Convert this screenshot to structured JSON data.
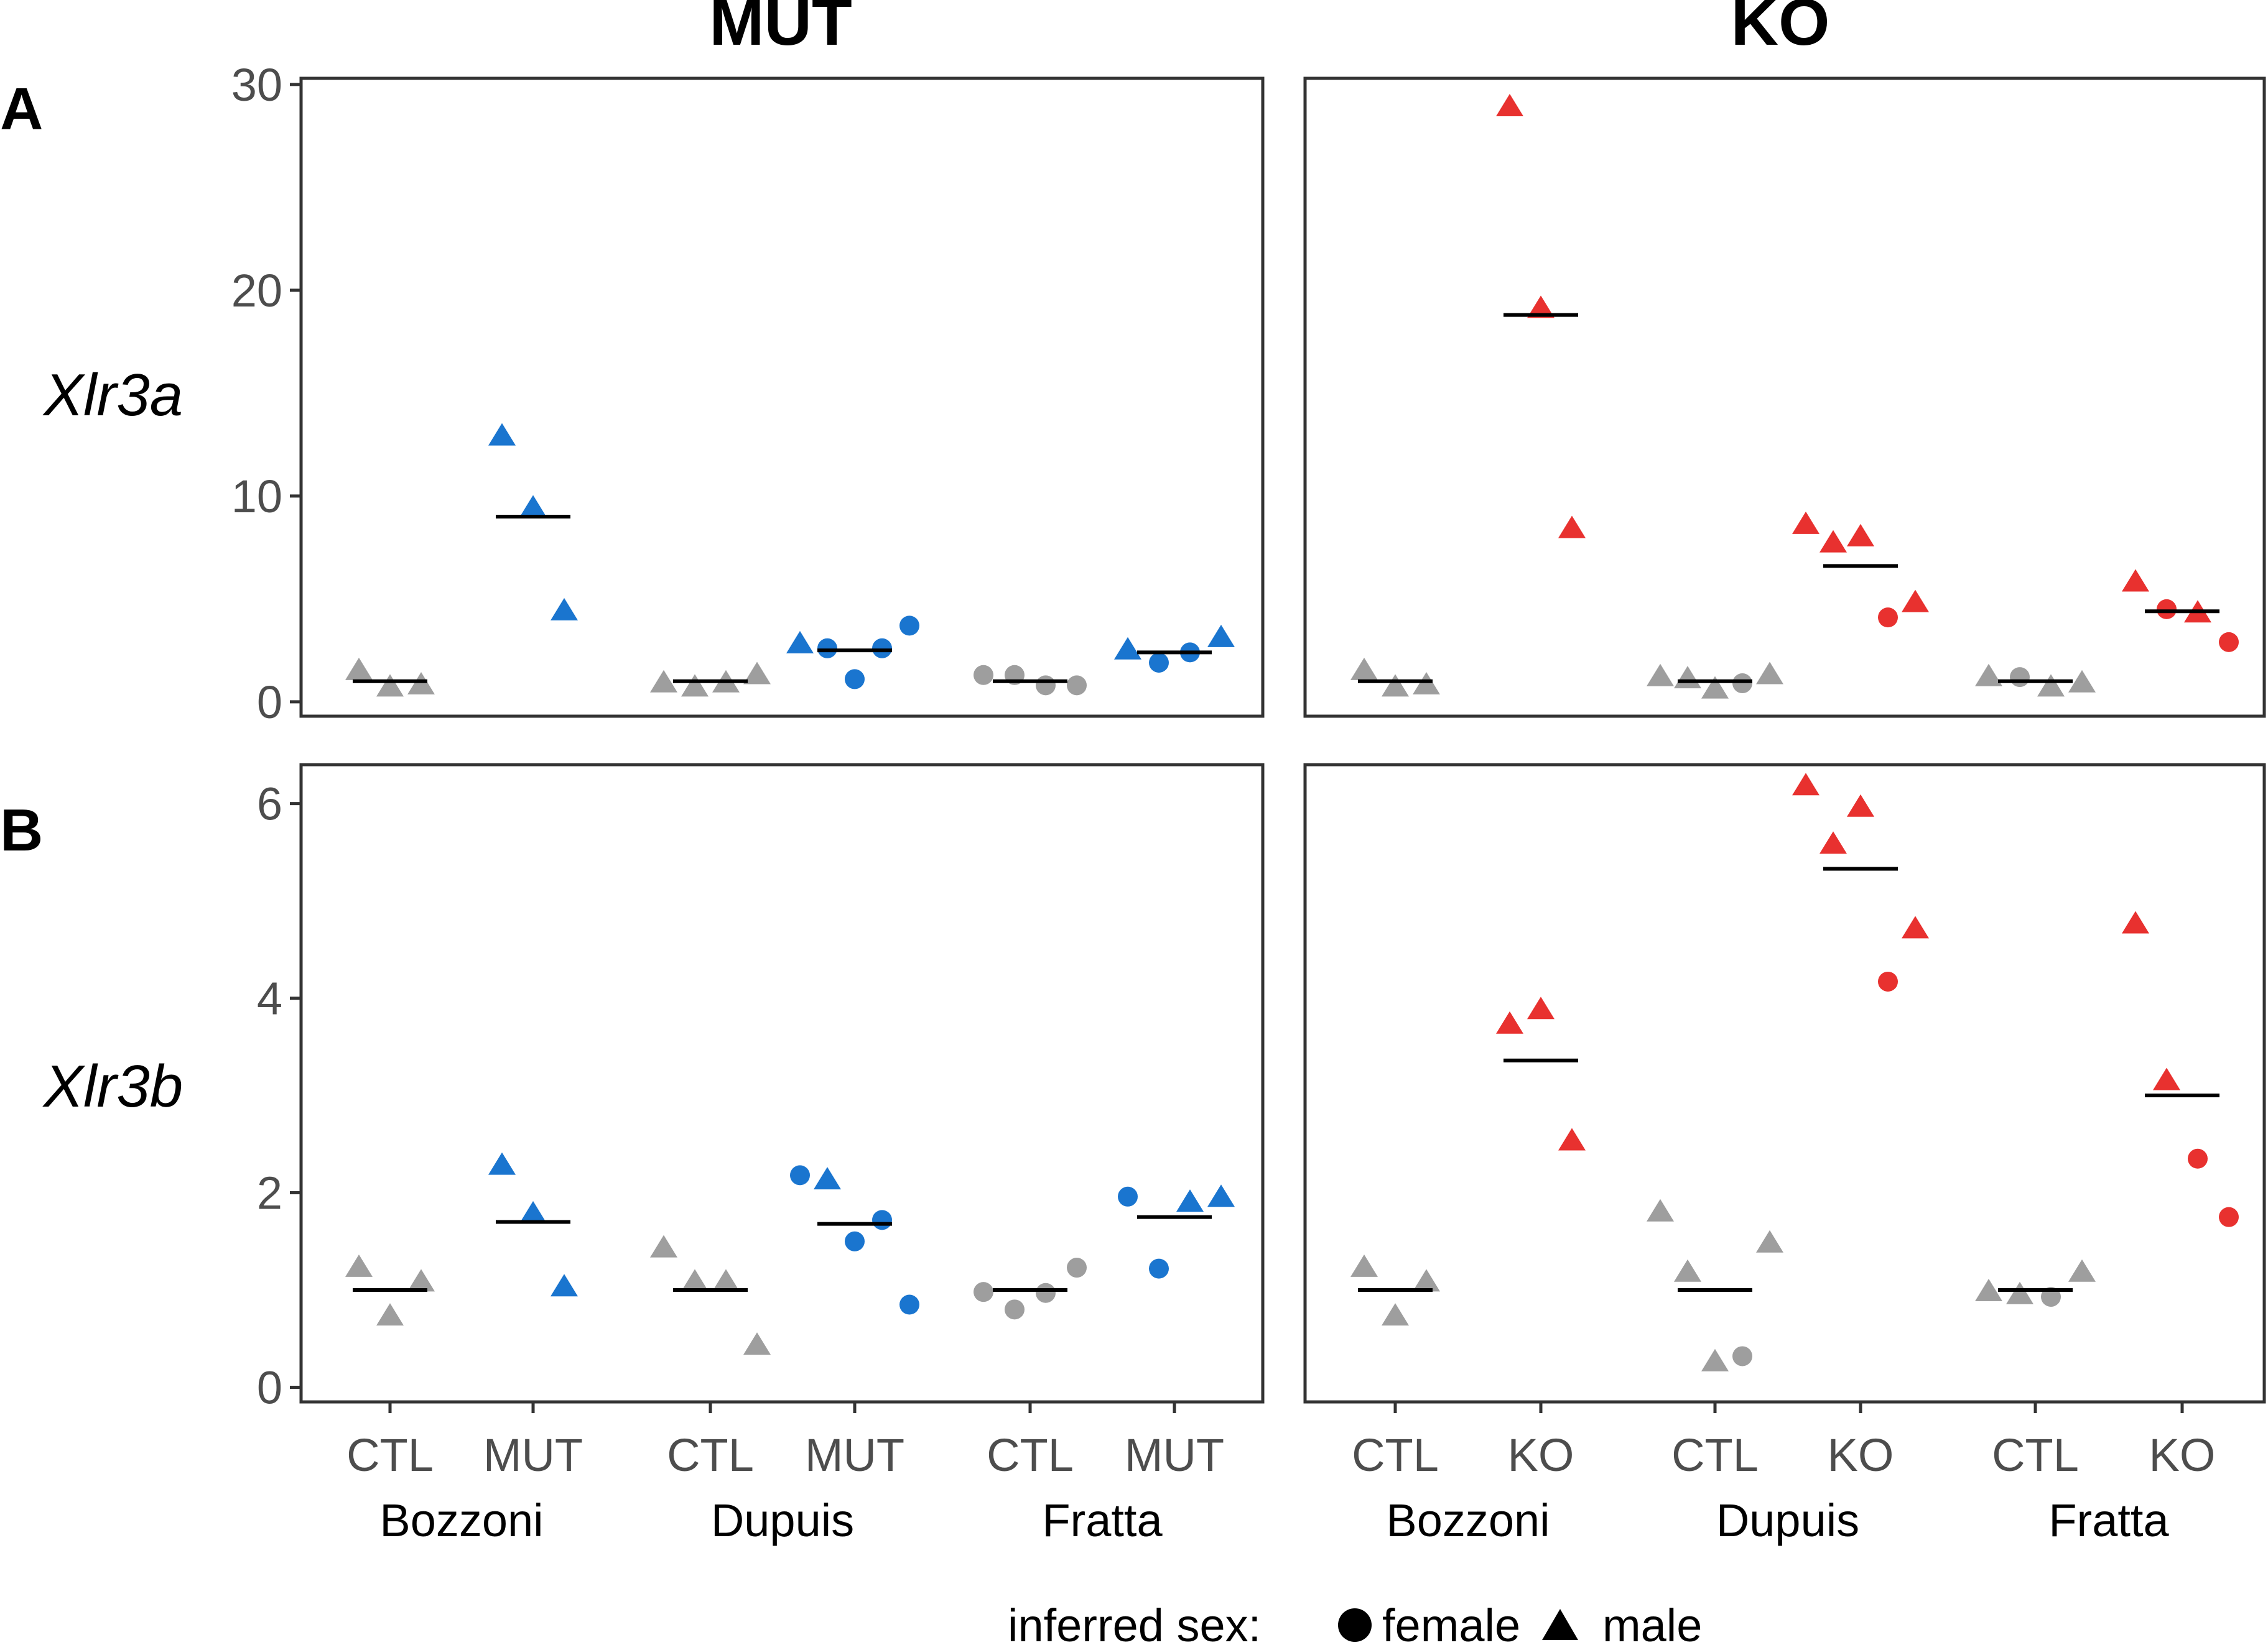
{
  "figure": {
    "column_titles": [
      "MUT",
      "KO"
    ],
    "row_letters": [
      "A",
      "B"
    ],
    "row_genes": [
      "Xlr3a",
      "Xlr3b"
    ],
    "legend": {
      "title": "inferred sex:",
      "female": "female",
      "male": "male"
    }
  },
  "colors": {
    "ctl": "#9e9e9e",
    "mut": "#1a75cf",
    "ko": "#e8312f",
    "line": "#000000",
    "axis_text": "#4d4d4d"
  },
  "chart_data": [
    {
      "type": "scatter",
      "panel": "A-MUT",
      "yticks": [
        "0",
        "10",
        "20",
        "30"
      ],
      "ylim": [
        -0.7,
        30.3
      ],
      "datasets": [
        "Bozzoni",
        "Dupuis",
        "Fratta"
      ],
      "groups": [
        {
          "dataset": "Bozzoni",
          "label": "CTL",
          "color": "ctl",
          "median": 1.0,
          "points": [
            {
              "v": 1.6,
              "s": "male"
            },
            {
              "v": 0.8,
              "s": "male"
            },
            {
              "v": 0.9,
              "s": "male"
            }
          ]
        },
        {
          "dataset": "Bozzoni",
          "label": "MUT",
          "color": "mut",
          "median": 9.0,
          "points": [
            {
              "v": 13.0,
              "s": "male"
            },
            {
              "v": 9.5,
              "s": "male"
            },
            {
              "v": 4.5,
              "s": "male"
            }
          ]
        },
        {
          "dataset": "Dupuis",
          "label": "CTL",
          "color": "ctl",
          "median": 1.0,
          "points": [
            {
              "v": 1.0,
              "s": "male"
            },
            {
              "v": 0.8,
              "s": "male"
            },
            {
              "v": 1.0,
              "s": "male"
            },
            {
              "v": 1.4,
              "s": "male"
            }
          ]
        },
        {
          "dataset": "Dupuis",
          "label": "MUT",
          "color": "mut",
          "median": 2.5,
          "points": [
            {
              "v": 2.9,
              "s": "male"
            },
            {
              "v": 2.6,
              "s": "female"
            },
            {
              "v": 1.1,
              "s": "female"
            },
            {
              "v": 2.6,
              "s": "female"
            },
            {
              "v": 3.7,
              "s": "female"
            }
          ]
        },
        {
          "dataset": "Fratta",
          "label": "CTL",
          "color": "ctl",
          "median": 1.0,
          "points": [
            {
              "v": 1.3,
              "s": "female"
            },
            {
              "v": 1.3,
              "s": "female"
            },
            {
              "v": 0.8,
              "s": "female"
            },
            {
              "v": 0.8,
              "s": "female"
            }
          ]
        },
        {
          "dataset": "Fratta",
          "label": "MUT",
          "color": "mut",
          "median": 2.4,
          "points": [
            {
              "v": 2.6,
              "s": "male"
            },
            {
              "v": 1.9,
              "s": "female"
            },
            {
              "v": 2.4,
              "s": "female"
            },
            {
              "v": 3.2,
              "s": "male"
            }
          ]
        }
      ]
    },
    {
      "type": "scatter",
      "panel": "A-KO",
      "yticks": [],
      "ylim": [
        -0.7,
        30.3
      ],
      "datasets": [
        "Bozzoni",
        "Dupuis",
        "Fratta"
      ],
      "groups": [
        {
          "dataset": "Bozzoni",
          "label": "CTL",
          "color": "ctl",
          "median": 1.0,
          "points": [
            {
              "v": 1.6,
              "s": "male"
            },
            {
              "v": 0.8,
              "s": "male"
            },
            {
              "v": 0.9,
              "s": "male"
            }
          ]
        },
        {
          "dataset": "Bozzoni",
          "label": "KO",
          "color": "ko",
          "median": 18.8,
          "points": [
            {
              "v": 29.0,
              "s": "male"
            },
            {
              "v": 19.2,
              "s": "male"
            },
            {
              "v": 8.5,
              "s": "male"
            }
          ]
        },
        {
          "dataset": "Dupuis",
          "label": "CTL",
          "color": "ctl",
          "median": 1.0,
          "points": [
            {
              "v": 1.3,
              "s": "male"
            },
            {
              "v": 1.2,
              "s": "male"
            },
            {
              "v": 0.7,
              "s": "male"
            },
            {
              "v": 0.9,
              "s": "female"
            },
            {
              "v": 1.4,
              "s": "male"
            }
          ]
        },
        {
          "dataset": "Dupuis",
          "label": "KO",
          "color": "ko",
          "median": 6.6,
          "points": [
            {
              "v": 8.7,
              "s": "male"
            },
            {
              "v": 7.8,
              "s": "male"
            },
            {
              "v": 8.1,
              "s": "male"
            },
            {
              "v": 4.1,
              "s": "female"
            },
            {
              "v": 4.9,
              "s": "male"
            }
          ]
        },
        {
          "dataset": "Fratta",
          "label": "CTL",
          "color": "ctl",
          "median": 1.0,
          "points": [
            {
              "v": 1.3,
              "s": "male"
            },
            {
              "v": 1.2,
              "s": "female"
            },
            {
              "v": 0.8,
              "s": "male"
            },
            {
              "v": 1.0,
              "s": "male"
            }
          ]
        },
        {
          "dataset": "Fratta",
          "label": "KO",
          "color": "ko",
          "median": 4.4,
          "points": [
            {
              "v": 5.9,
              "s": "male"
            },
            {
              "v": 4.5,
              "s": "female"
            },
            {
              "v": 4.4,
              "s": "male"
            },
            {
              "v": 2.9,
              "s": "female"
            }
          ]
        }
      ]
    },
    {
      "type": "scatter",
      "panel": "B-MUT",
      "yticks": [
        "0",
        "2",
        "4",
        "6"
      ],
      "ylim": [
        -0.15,
        6.4
      ],
      "xlabels": [
        "CTL",
        "MUT",
        "CTL",
        "MUT",
        "CTL",
        "MUT"
      ],
      "datasets": [
        "Bozzoni",
        "Dupuis",
        "Fratta"
      ],
      "groups": [
        {
          "dataset": "Bozzoni",
          "label": "CTL",
          "color": "ctl",
          "median": 1.0,
          "points": [
            {
              "v": 1.25,
              "s": "male"
            },
            {
              "v": 0.75,
              "s": "male"
            },
            {
              "v": 1.1,
              "s": "male"
            }
          ]
        },
        {
          "dataset": "Bozzoni",
          "label": "MUT",
          "color": "mut",
          "median": 1.7,
          "points": [
            {
              "v": 2.3,
              "s": "male"
            },
            {
              "v": 1.8,
              "s": "male"
            },
            {
              "v": 1.05,
              "s": "male"
            }
          ]
        },
        {
          "dataset": "Dupuis",
          "label": "CTL",
          "color": "ctl",
          "median": 1.0,
          "points": [
            {
              "v": 1.45,
              "s": "male"
            },
            {
              "v": 1.1,
              "s": "male"
            },
            {
              "v": 1.1,
              "s": "male"
            },
            {
              "v": 0.45,
              "s": "male"
            }
          ]
        },
        {
          "dataset": "Dupuis",
          "label": "MUT",
          "color": "mut",
          "median": 1.68,
          "points": [
            {
              "v": 2.18,
              "s": "female"
            },
            {
              "v": 2.15,
              "s": "male"
            },
            {
              "v": 1.5,
              "s": "female"
            },
            {
              "v": 1.72,
              "s": "female"
            },
            {
              "v": 0.85,
              "s": "female"
            }
          ]
        },
        {
          "dataset": "Fratta",
          "label": "CTL",
          "color": "ctl",
          "median": 1.0,
          "points": [
            {
              "v": 0.98,
              "s": "female"
            },
            {
              "v": 0.8,
              "s": "female"
            },
            {
              "v": 0.97,
              "s": "female"
            },
            {
              "v": 1.23,
              "s": "female"
            }
          ]
        },
        {
          "dataset": "Fratta",
          "label": "MUT",
          "color": "mut",
          "median": 1.75,
          "points": [
            {
              "v": 1.96,
              "s": "female"
            },
            {
              "v": 1.22,
              "s": "female"
            },
            {
              "v": 1.92,
              "s": "male"
            },
            {
              "v": 1.97,
              "s": "male"
            }
          ]
        }
      ]
    },
    {
      "type": "scatter",
      "panel": "B-KO",
      "yticks": [],
      "ylim": [
        -0.15,
        6.4
      ],
      "xlabels": [
        "CTL",
        "KO",
        "CTL",
        "KO",
        "CTL",
        "KO"
      ],
      "datasets": [
        "Bozzoni",
        "Dupuis",
        "Fratta"
      ],
      "groups": [
        {
          "dataset": "Bozzoni",
          "label": "CTL",
          "color": "ctl",
          "median": 1.0,
          "points": [
            {
              "v": 1.25,
              "s": "male"
            },
            {
              "v": 0.75,
              "s": "male"
            },
            {
              "v": 1.1,
              "s": "male"
            }
          ]
        },
        {
          "dataset": "Bozzoni",
          "label": "KO",
          "color": "ko",
          "median": 3.36,
          "points": [
            {
              "v": 3.75,
              "s": "male"
            },
            {
              "v": 3.9,
              "s": "male"
            },
            {
              "v": 2.55,
              "s": "male"
            }
          ]
        },
        {
          "dataset": "Dupuis",
          "label": "CTL",
          "color": "ctl",
          "median": 1.0,
          "points": [
            {
              "v": 1.82,
              "s": "male"
            },
            {
              "v": 1.2,
              "s": "male"
            },
            {
              "v": 0.28,
              "s": "male"
            },
            {
              "v": 0.32,
              "s": "female"
            },
            {
              "v": 1.5,
              "s": "male"
            }
          ]
        },
        {
          "dataset": "Dupuis",
          "label": "KO",
          "color": "ko",
          "median": 5.33,
          "points": [
            {
              "v": 6.2,
              "s": "male"
            },
            {
              "v": 5.6,
              "s": "male"
            },
            {
              "v": 5.98,
              "s": "male"
            },
            {
              "v": 4.17,
              "s": "female"
            },
            {
              "v": 4.73,
              "s": "male"
            }
          ]
        },
        {
          "dataset": "Fratta",
          "label": "CTL",
          "color": "ctl",
          "median": 1.0,
          "points": [
            {
              "v": 1.0,
              "s": "male"
            },
            {
              "v": 0.97,
              "s": "male"
            },
            {
              "v": 0.93,
              "s": "female"
            },
            {
              "v": 1.2,
              "s": "male"
            }
          ]
        },
        {
          "dataset": "Fratta",
          "label": "KO",
          "color": "ko",
          "median": 3.0,
          "points": [
            {
              "v": 4.78,
              "s": "male"
            },
            {
              "v": 3.17,
              "s": "male"
            },
            {
              "v": 2.35,
              "s": "female"
            },
            {
              "v": 1.75,
              "s": "female"
            }
          ]
        }
      ]
    }
  ]
}
